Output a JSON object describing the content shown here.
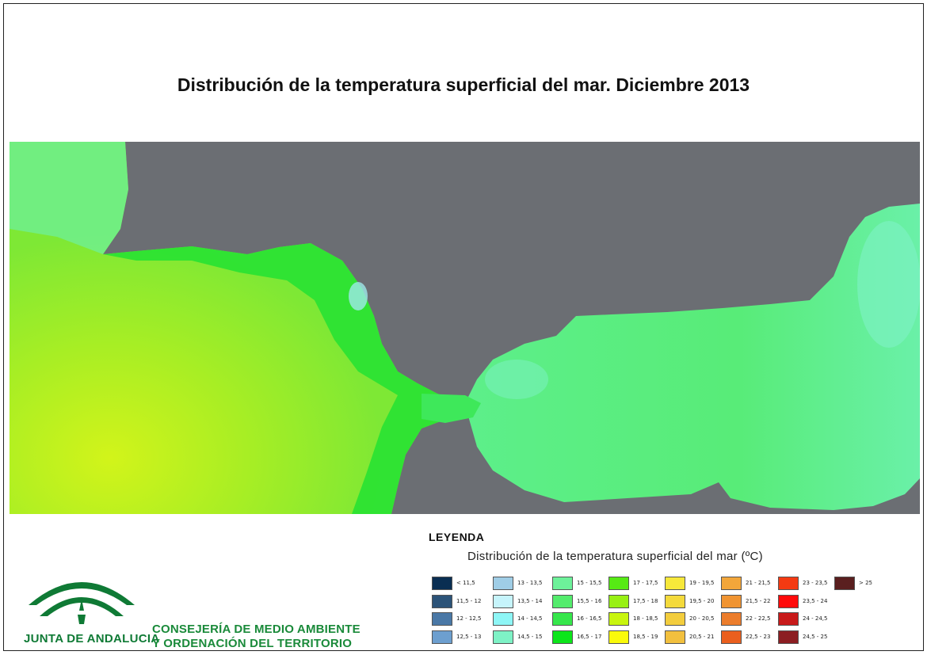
{
  "title": "Distribución de la temperatura superficial del mar. Diciembre 2013",
  "legend": {
    "heading": "LEYENDA",
    "subtitle": "Distribución de la temperatura superficial del mar (ºC)",
    "items": [
      {
        "label": "< 11,5",
        "color": "#0a2e52"
      },
      {
        "label": "11,5 - 12",
        "color": "#2c5378"
      },
      {
        "label": "12 - 12,5",
        "color": "#4a78a6"
      },
      {
        "label": "12,5 - 13",
        "color": "#6d9fcf"
      },
      {
        "label": "13 - 13,5",
        "color": "#9fcde6"
      },
      {
        "label": "13,5 - 14",
        "color": "#c6f4fb"
      },
      {
        "label": "14 - 14,5",
        "color": "#8ef6f6"
      },
      {
        "label": "14,5 - 15",
        "color": "#7ef2c6"
      },
      {
        "label": "15 - 15,5",
        "color": "#6df29a"
      },
      {
        "label": "15,5 - 16",
        "color": "#54ec6d"
      },
      {
        "label": "16 - 16,5",
        "color": "#36e74b"
      },
      {
        "label": "16,5 - 17",
        "color": "#0ce51a"
      },
      {
        "label": "17 - 17,5",
        "color": "#56ea14"
      },
      {
        "label": "17,5 - 18",
        "color": "#98f014"
      },
      {
        "label": "18 - 18,5",
        "color": "#c8f50e"
      },
      {
        "label": "18,5 - 19",
        "color": "#fafa0a"
      },
      {
        "label": "19 - 19,5",
        "color": "#f7e83a"
      },
      {
        "label": "19,5 - 20",
        "color": "#f4da3c"
      },
      {
        "label": "20 - 20,5",
        "color": "#f3cd3d"
      },
      {
        "label": "20,5 - 21",
        "color": "#f2c03e"
      },
      {
        "label": "21 - 21,5",
        "color": "#f2a63a"
      },
      {
        "label": "21,5 - 22",
        "color": "#f09432"
      },
      {
        "label": "22 - 22,5",
        "color": "#ec7d2c"
      },
      {
        "label": "22,5 - 23",
        "color": "#ea5f1e"
      },
      {
        "label": "23 - 23,5",
        "color": "#f43a12"
      },
      {
        "label": "23,5 - 24",
        "color": "#ff0a0a"
      },
      {
        "label": "24 - 24,5",
        "color": "#c81a1a"
      },
      {
        "label": "24,5 - 25",
        "color": "#8c1e22"
      },
      {
        "label": "> 25",
        "color": "#5a1f1f"
      }
    ]
  },
  "organization": {
    "line1": "CONSEJERÍA DE MEDIO AMBIENTE",
    "line2": "Y ORDENACIÓN DEL TERRITORIO",
    "logo_text": "JUNTA DE ANDALUCIA",
    "color": "#1a8a3a"
  },
  "map_colors": {
    "land": "#6b6e73",
    "atlantic": "#8ee83a",
    "atlantic_warm": "#c8f21e",
    "coast": "#22e232",
    "med": "#56ec7a",
    "med_light": "#7ef0b0"
  }
}
